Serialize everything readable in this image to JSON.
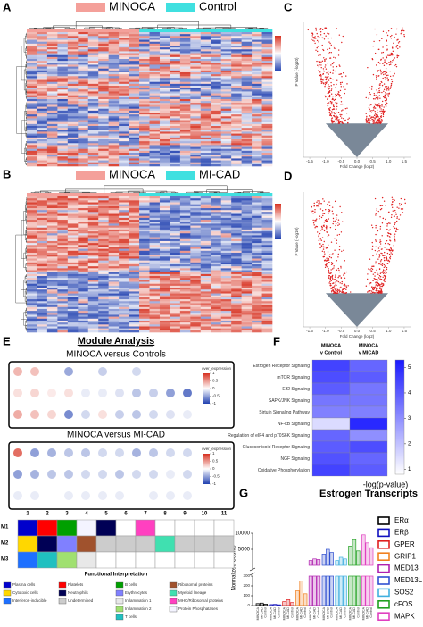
{
  "panels": {
    "a": {
      "label": "A",
      "legend": [
        {
          "name": "MINOCA",
          "color": "#f4a09a"
        },
        {
          "name": "Control",
          "color": "#40e0e0"
        }
      ]
    },
    "b": {
      "label": "B",
      "legend": [
        {
          "name": "MINOCA",
          "color": "#f4a09a"
        },
        {
          "name": "MI-CAD",
          "color": "#40e0e0"
        }
      ]
    },
    "c": {
      "label": "C",
      "y_label": "P Value (-log10)",
      "x_label": "Fold Change (log2)",
      "xlim": [
        -1.7,
        1.7
      ],
      "xticks": [
        -1.5,
        {
          "value": -1,
          "label": "-1.0"
        },
        -0.5,
        {
          "value": 0,
          "label": "0.0"
        },
        0.5,
        {
          "value": 1,
          "label": "1.0"
        },
        1.5
      ]
    },
    "d": {
      "label": "D",
      "y_label": "P Value (-log10)",
      "x_label": "Fold Change (log2)",
      "xlim": [
        -1.7,
        1.7
      ],
      "xticks": [
        -1.5,
        {
          "value": -1,
          "label": "-1.0"
        },
        -0.5,
        {
          "value": 0,
          "label": "0.0"
        },
        0.5,
        {
          "value": 1,
          "label": "1.0"
        },
        1.5
      ]
    },
    "e": {
      "label": "E",
      "title": "Module Analysis",
      "subtitle_1": "MINOCA versus Controls",
      "subtitle_2": "MINOCA versus MI-CAD",
      "colorbar_title": "over_expression",
      "colorbar_ticks": [
        1,
        0.5,
        0,
        -0.5,
        -1
      ],
      "clim": [
        -1,
        1
      ],
      "dots_1": [
        [
          0.35,
          0.3,
          null,
          -0.45,
          null,
          -0.25,
          null,
          -0.2,
          null,
          null,
          null
        ],
        [
          0.15,
          0.2,
          0.1,
          0.15,
          -0.1,
          -0.1,
          -0.15,
          -0.3,
          -0.25,
          -0.5,
          -0.7
        ],
        [
          0.4,
          0.3,
          0.2,
          -0.6,
          -0.2,
          0.15,
          -0.25,
          -0.3,
          -0.2,
          -0.15,
          -0.1
        ]
      ],
      "dots_2": [
        [
          0.7,
          -0.5,
          -0.4,
          -0.3,
          -0.3,
          -0.2,
          -0.2,
          -0.4,
          -0.3,
          -0.2,
          -0.2
        ],
        [
          -0.5,
          -0.4,
          -0.3,
          -0.3,
          -0.2,
          -0.2,
          -0.3,
          -0.2,
          -0.2,
          -0.1,
          -0.2
        ],
        [
          -0.1,
          -0.1,
          0,
          -0.1,
          -0.1,
          -0.1,
          -0.1,
          0,
          -0.1,
          -0.1,
          -0.1
        ]
      ],
      "modules": [
        1,
        2,
        3,
        4,
        5,
        6,
        7,
        8,
        9,
        10,
        11
      ],
      "rows": [
        "M1",
        "M2",
        "M3"
      ],
      "interpretation_title": "Functional Interpretation",
      "legend_columns": [
        [
          {
            "name": "Plasma cells",
            "color": "#0000cc"
          },
          {
            "name": "Cytotoxic cells",
            "color": "#ffd700"
          },
          {
            "name": "Interferon-inducible",
            "color": "#1e70ff"
          }
        ],
        [
          {
            "name": "Platelets",
            "color": "#ff0000"
          },
          {
            "name": "Neutrophils",
            "color": "#000055"
          },
          {
            "name": "Undetermined",
            "color": "#cccccc"
          }
        ],
        [
          {
            "name": "B cells",
            "color": "#00a000"
          },
          {
            "name": "Erythrocytes",
            "color": "#8080ff"
          },
          {
            "name": "Inflammation 1",
            "color": "#e8e8e8"
          },
          {
            "name": "Inflammation 2",
            "color": "#a0e070"
          },
          {
            "name": "T cells",
            "color": "#20c0c0"
          }
        ],
        [
          {
            "name": "Ribosomal proteins",
            "color": "#a0522d"
          },
          {
            "name": "Myeloid lineage",
            "color": "#40e0b0"
          },
          {
            "name": "MHC/Ribosomal proteins",
            "color": "#ff40c0"
          },
          {
            "name": "Protein Phosphatases",
            "color": "#f4f4ff"
          }
        ]
      ]
    },
    "f": {
      "label": "F",
      "columns": [
        {
          "line1": "MINOCA",
          "line2": "v Control"
        },
        {
          "line1": "MINOCA",
          "line2": "v MICAD"
        }
      ],
      "rows": [
        "Estrogen Receptor Signaling",
        "mTOR Signaling",
        "Eif2 Signaling",
        "SAPK/JNK Signaling",
        "Sirtuin Signaling Pathway",
        "NF-κB Signaling",
        "Regulation of eIF4 and p70S6K Signaling",
        "Glucocorticoid Receptor Signaling",
        "NGF Signaling",
        "Oxidative Phosphorylation"
      ],
      "values": [
        [
          4.5,
          3.8
        ],
        [
          4.3,
          4.0
        ],
        [
          4.0,
          3.5
        ],
        [
          3.5,
          3.5
        ],
        [
          3.3,
          3.3
        ],
        [
          1.5,
          5.0
        ],
        [
          3.8,
          3.0
        ],
        [
          4.0,
          4.3
        ],
        [
          4.2,
          3.8
        ],
        [
          4.5,
          4.0
        ]
      ],
      "clim": [
        0.8,
        5.3
      ],
      "colorbar_ticks": [
        1,
        2,
        3,
        4,
        5
      ],
      "colorbar_label": "-log(p-value)"
    },
    "g": {
      "label": "G",
      "title": "Estrogen Transcripts",
      "y_label": "Normalized Counts",
      "categories": [
        "MINOCA",
        "MI-CAD",
        "Control"
      ],
      "ylim": [
        0,
        300
      ],
      "yticks": [
        0,
        100,
        200,
        300
      ],
      "ylim_upper": [
        0,
        10000
      ],
      "yticks_upper": [
        5000,
        10000
      ],
      "series": [
        {
          "name": "ERα",
          "color": "#000000",
          "values": [
            20,
            25,
            15
          ]
        },
        {
          "name": "ERβ",
          "color": "#1010c0",
          "values": [
            10,
            12,
            8
          ]
        },
        {
          "name": "GPER",
          "color": "#e02020",
          "values": [
            40,
            60,
            30
          ]
        },
        {
          "name": "GRIP1",
          "color": "#f08020",
          "values": [
            150,
            250,
            120
          ]
        },
        {
          "name": "MED13",
          "color": "#b020b0",
          "values": [
            1500,
            2000,
            1800
          ]
        },
        {
          "name": "MED13L",
          "color": "#3050d0",
          "values": [
            3500,
            5000,
            4000
          ]
        },
        {
          "name": "SOS2",
          "color": "#40b0e0",
          "values": [
            1500,
            2500,
            2000
          ]
        },
        {
          "name": "cFOS",
          "color": "#20a020",
          "values": [
            6000,
            8000,
            4500
          ]
        },
        {
          "name": "MAPK",
          "color": "#e040c0",
          "values": [
            9500,
            7000,
            5500
          ]
        }
      ]
    }
  }
}
